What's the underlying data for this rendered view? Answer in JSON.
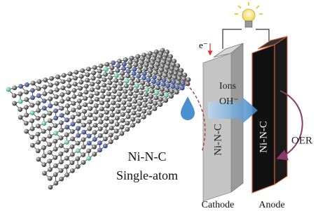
{
  "labels": {
    "electron": "e⁻",
    "ions": "Ions",
    "hydroxide": "OH⁻",
    "oer": "OER",
    "cathode_material": "Ni-N-C",
    "anode_material": "Ni-N-C",
    "catalyst_name": "Ni-N-C",
    "catalyst_type": "Single-atom",
    "cathode": "Cathode",
    "anode": "Anode"
  }
}
